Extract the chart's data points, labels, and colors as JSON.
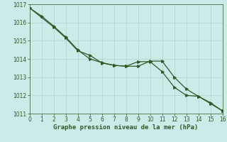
{
  "title": "Graphe pression niveau de la mer (hPa)",
  "background_color": "#cceae7",
  "grid_color": "#aad4d0",
  "line_color": "#2d5a27",
  "spine_color": "#2d5a27",
  "xlim": [
    0,
    16
  ],
  "ylim": [
    1011,
    1017
  ],
  "yticks": [
    1011,
    1012,
    1013,
    1014,
    1015,
    1016,
    1017
  ],
  "xticks": [
    0,
    1,
    2,
    3,
    4,
    5,
    6,
    7,
    8,
    9,
    10,
    11,
    12,
    13,
    14,
    15,
    16
  ],
  "line1_x": [
    0,
    1,
    2,
    3,
    4,
    5,
    6,
    7,
    8,
    9,
    10,
    11,
    12,
    13,
    14,
    15,
    16
  ],
  "line1_y": [
    1016.8,
    1016.35,
    1015.8,
    1015.2,
    1014.5,
    1014.0,
    1013.8,
    1013.65,
    1013.6,
    1013.85,
    1013.85,
    1013.3,
    1012.45,
    1012.0,
    1011.95,
    1011.6,
    1011.15
  ],
  "line2_x": [
    0,
    2,
    3,
    4,
    5,
    6,
    7,
    8,
    9,
    10,
    11,
    12,
    13,
    14,
    15,
    16
  ],
  "line2_y": [
    1016.8,
    1015.75,
    1015.15,
    1014.45,
    1014.2,
    1013.78,
    1013.65,
    1013.6,
    1013.6,
    1013.88,
    1013.88,
    1013.0,
    1012.35,
    1011.95,
    1011.55,
    1011.15
  ],
  "marker_size": 2.5,
  "linewidth": 0.9,
  "title_fontsize": 6.5,
  "tick_fontsize": 5.5,
  "fig_width": 3.2,
  "fig_height": 2.0,
  "dpi": 100
}
